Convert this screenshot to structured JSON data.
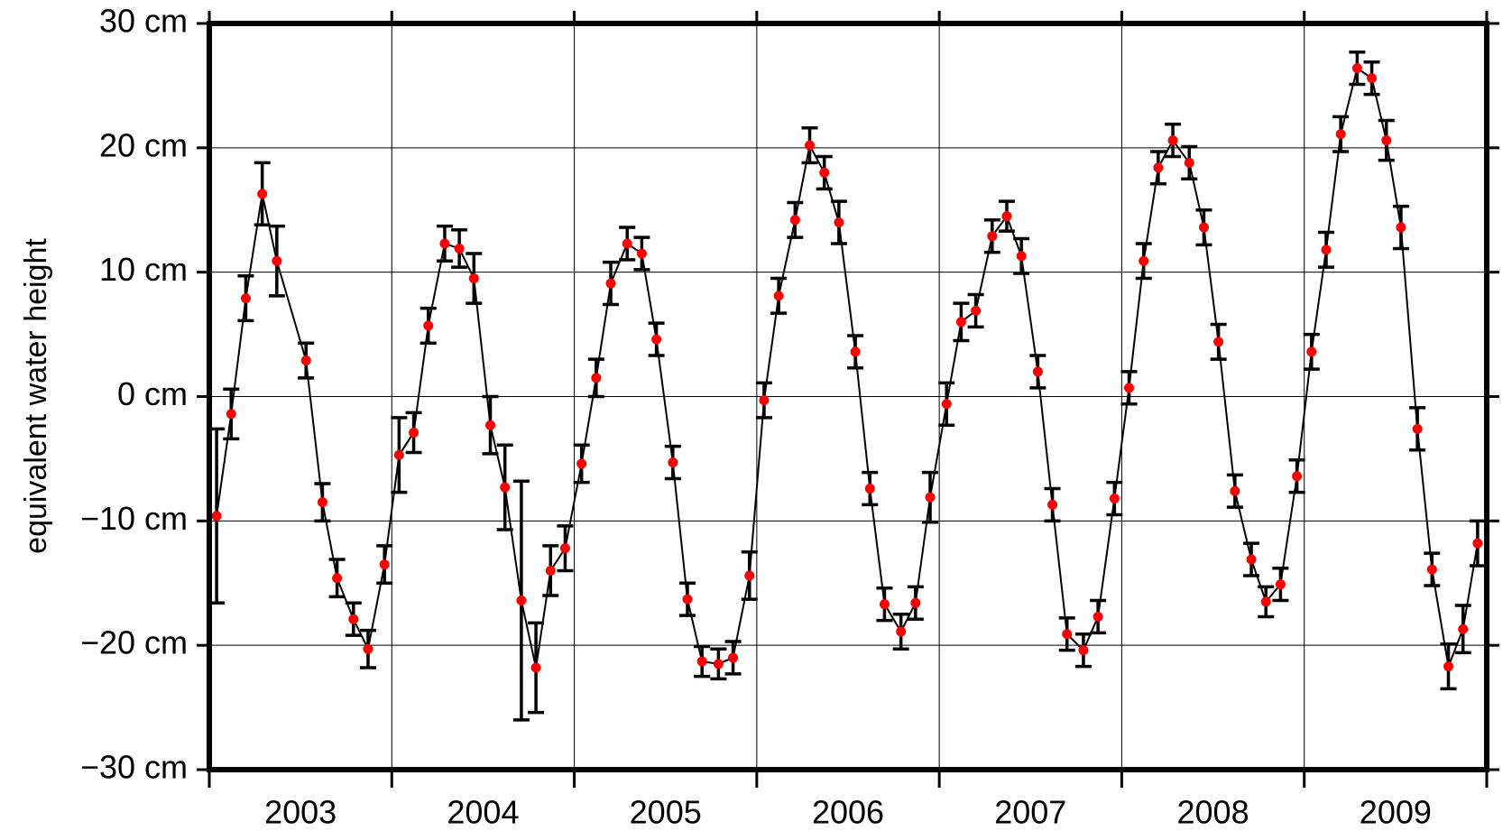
{
  "chart_data": {
    "type": "errorbar-line",
    "y_label": "equivalent water height",
    "x": [
      2003.04,
      2003.12,
      2003.2,
      2003.29,
      2003.37,
      2003.53,
      2003.62,
      2003.7,
      2003.79,
      2003.87,
      2003.96,
      2004.04,
      2004.12,
      2004.2,
      2004.29,
      2004.37,
      2004.45,
      2004.54,
      2004.62,
      2004.71,
      2004.79,
      2004.87,
      2004.95,
      2005.04,
      2005.12,
      2005.2,
      2005.29,
      2005.37,
      2005.45,
      2005.54,
      2005.62,
      2005.7,
      2005.79,
      2005.87,
      2005.96,
      2006.04,
      2006.12,
      2006.21,
      2006.29,
      2006.37,
      2006.45,
      2006.54,
      2006.62,
      2006.7,
      2006.79,
      2006.87,
      2006.95,
      2007.04,
      2007.12,
      2007.2,
      2007.29,
      2007.37,
      2007.45,
      2007.54,
      2007.62,
      2007.7,
      2007.79,
      2007.87,
      2007.96,
      2008.04,
      2008.12,
      2008.2,
      2008.28,
      2008.37,
      2008.45,
      2008.53,
      2008.62,
      2008.71,
      2008.79,
      2008.87,
      2008.96,
      2009.04,
      2009.12,
      2009.2,
      2009.29,
      2009.37,
      2009.45,
      2009.53,
      2009.62,
      2009.7,
      2009.79,
      2009.87,
      2009.95
    ],
    "values": [
      -9.6,
      -1.4,
      7.9,
      16.3,
      10.9,
      2.9,
      -8.5,
      -14.6,
      -17.9,
      -20.3,
      -13.5,
      -4.7,
      -2.9,
      5.7,
      12.3,
      11.9,
      9.5,
      -2.3,
      -7.3,
      -16.4,
      -21.8,
      -14.0,
      -12.2,
      -5.4,
      1.5,
      9.1,
      12.3,
      11.5,
      4.6,
      -5.3,
      -16.3,
      -21.3,
      -21.5,
      -21.0,
      -14.4,
      -0.3,
      8.1,
      14.2,
      20.2,
      18.0,
      14.0,
      3.6,
      -7.4,
      -16.7,
      -18.9,
      -16.6,
      -8.1,
      -0.6,
      6.0,
      6.9,
      12.9,
      14.5,
      11.3,
      2.0,
      -8.7,
      -19.1,
      -20.4,
      -17.7,
      -8.2,
      0.7,
      10.9,
      18.4,
      20.6,
      18.8,
      13.6,
      4.4,
      -7.6,
      -13.1,
      -16.5,
      -15.1,
      -6.4,
      3.6,
      11.8,
      21.1,
      26.4,
      25.6,
      20.6,
      13.6,
      -2.6,
      -13.9,
      -21.7,
      -18.7,
      -11.8
    ],
    "errors": [
      7.0,
      2.0,
      1.8,
      2.5,
      2.8,
      1.4,
      1.5,
      1.5,
      1.3,
      1.5,
      1.5,
      3.0,
      1.6,
      1.4,
      1.4,
      1.5,
      2.0,
      2.3,
      3.4,
      9.6,
      3.6,
      2.0,
      1.8,
      1.5,
      1.5,
      1.7,
      1.3,
      1.3,
      1.3,
      1.3,
      1.3,
      1.2,
      1.2,
      1.3,
      1.9,
      1.4,
      1.4,
      1.4,
      1.4,
      1.3,
      1.7,
      1.3,
      1.3,
      1.3,
      1.4,
      1.3,
      2.0,
      1.7,
      1.5,
      1.3,
      1.3,
      1.2,
      1.4,
      1.3,
      1.3,
      1.3,
      1.3,
      1.3,
      1.3,
      1.3,
      1.4,
      1.3,
      1.3,
      1.3,
      1.4,
      1.4,
      1.3,
      1.3,
      1.2,
      1.3,
      1.3,
      1.4,
      1.4,
      1.4,
      1.3,
      1.3,
      1.6,
      1.7,
      1.7,
      1.3,
      1.8,
      1.9,
      1.8
    ],
    "color": "#ff0000",
    "line_color": "#000000",
    "xlim": [
      2003,
      2010
    ],
    "xticks": [
      2003,
      2004,
      2005,
      2006,
      2007,
      2008,
      2009,
      2010
    ],
    "year_labels": [
      2003,
      2004,
      2005,
      2006,
      2007,
      2008,
      2009
    ],
    "ylim": [
      -30,
      30
    ],
    "yticks": [
      {
        "value": -30,
        "label": "−30 cm"
      },
      {
        "value": -20,
        "label": "−20 cm"
      },
      {
        "value": -10,
        "label": "−10 cm"
      },
      {
        "value": 0,
        "label": "0 cm"
      },
      {
        "value": 10,
        "label": "10 cm"
      },
      {
        "value": 20,
        "label": "20 cm"
      },
      {
        "value": 30,
        "label": "30 cm"
      }
    ],
    "grid": true
  }
}
